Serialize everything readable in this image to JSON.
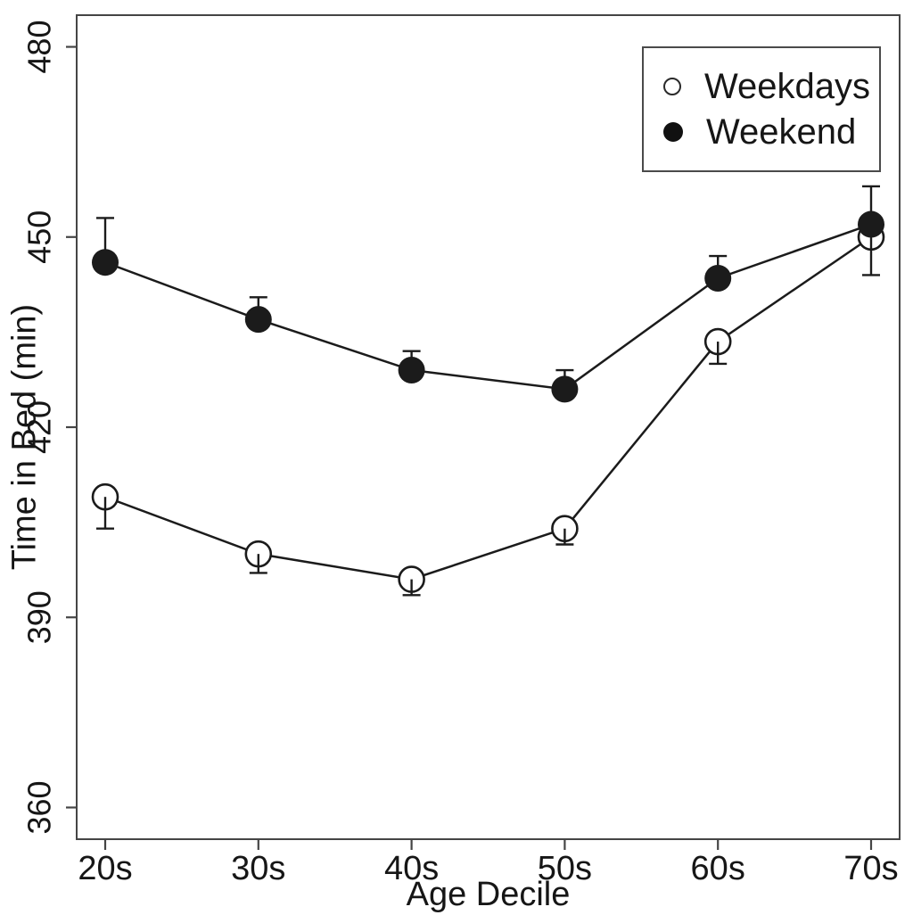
{
  "figure": {
    "background": "#ffffff",
    "ink_color": "#1b1b1b",
    "frame_color": "#454545"
  },
  "chart_data": {
    "type": "line",
    "title": "",
    "xlabel": "Age Decile",
    "ylabel": "Time in Bed (min)",
    "categories": [
      "20s",
      "30s",
      "40s",
      "50s",
      "60s",
      "70s"
    ],
    "ylim": [
      355,
      485
    ],
    "yticks": [
      360,
      390,
      420,
      450,
      480
    ],
    "grid": false,
    "legend_position": "top-right",
    "series": [
      {
        "name": "Weekdays",
        "marker": "open-circle",
        "values": [
          409,
          400,
          396,
          404,
          433.5,
          450
        ],
        "errors": [
          5,
          3,
          2.5,
          2.5,
          3.5,
          6
        ],
        "error_direction": "down"
      },
      {
        "name": "Weekend",
        "marker": "filled-circle",
        "values": [
          446,
          437,
          429,
          426,
          443.5,
          452
        ],
        "errors": [
          7,
          3.5,
          3,
          3,
          3.5,
          6
        ],
        "error_direction": "up"
      }
    ]
  }
}
